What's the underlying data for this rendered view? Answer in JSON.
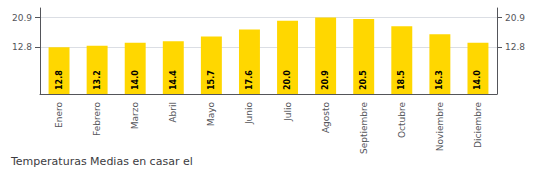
{
  "chart_data": {
    "type": "bar",
    "title": "Temperaturas Medias en casar el",
    "categories": [
      "Enero",
      "Febrero",
      "Marzo",
      "Abril",
      "Mayo",
      "Junio",
      "Julio",
      "Agosto",
      "Septiembre",
      "Octubre",
      "Noviembre",
      "Diciembre"
    ],
    "values": [
      12.8,
      13.2,
      14.0,
      14.4,
      15.7,
      17.6,
      20.0,
      20.9,
      20.5,
      18.5,
      16.3,
      14.0
    ],
    "value_labels": [
      "12.8",
      "13.2",
      "14.0",
      "14.4",
      "15.7",
      "17.6",
      "20.0",
      "20.9",
      "20.5",
      "18.5",
      "16.3",
      "14.0"
    ],
    "data_labels": true,
    "color": "#FFD700",
    "ylim": [
      0.0,
      23.5
    ],
    "yticks": [
      12.8,
      20.9
    ],
    "grid": true
  }
}
